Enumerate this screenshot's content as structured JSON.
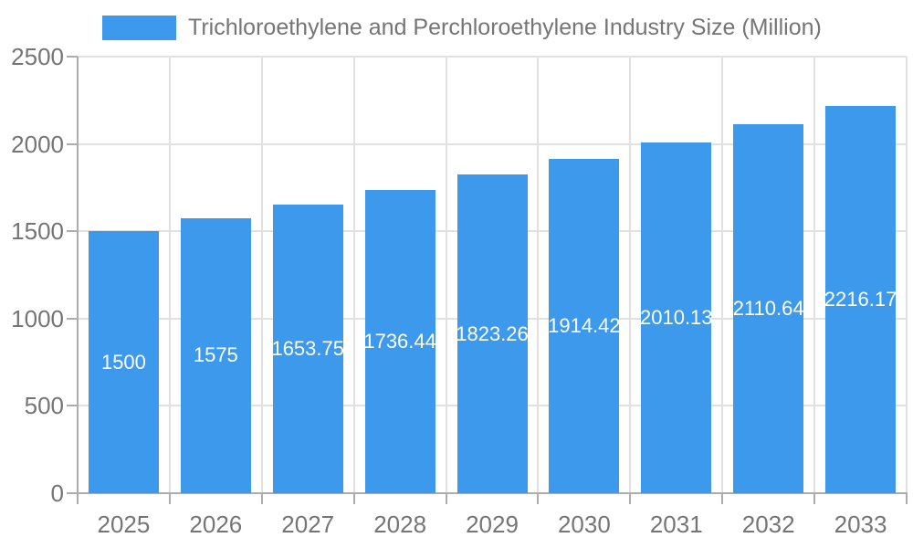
{
  "chart_data": {
    "type": "bar",
    "title": "Trichloroethylene and Perchloroethylene Industry Size (Million)",
    "categories": [
      "2025",
      "2026",
      "2027",
      "2028",
      "2029",
      "2030",
      "2031",
      "2032",
      "2033"
    ],
    "series": [
      {
        "name": "Trichloroethylene and Perchloroethylene Industry Size (Million)",
        "values": [
          1500,
          1575,
          1653.75,
          1736.44,
          1823.26,
          1914.42,
          2010.13,
          2110.64,
          2216.17
        ]
      }
    ],
    "bar_value_labels": [
      "1500",
      "1575",
      "1653.75",
      "1736.44",
      "1823.26",
      "1914.42",
      "2010.13",
      "2110.64",
      "2216.17"
    ],
    "y_ticks": [
      0,
      500,
      1000,
      1500,
      2000,
      2500
    ],
    "ylim": [
      0,
      2500
    ],
    "xlabel": "",
    "ylabel": "",
    "grid": true,
    "legend_position": "top-left",
    "value_label_position": "inside-center"
  },
  "colors": {
    "bar": "#3C99EC",
    "bar_value_label": "#FFFFFF",
    "axis_text": "#757575",
    "grid_line": "#E1E1E1",
    "axis_line": "#ADADAD",
    "background": "#FFFFFF"
  }
}
